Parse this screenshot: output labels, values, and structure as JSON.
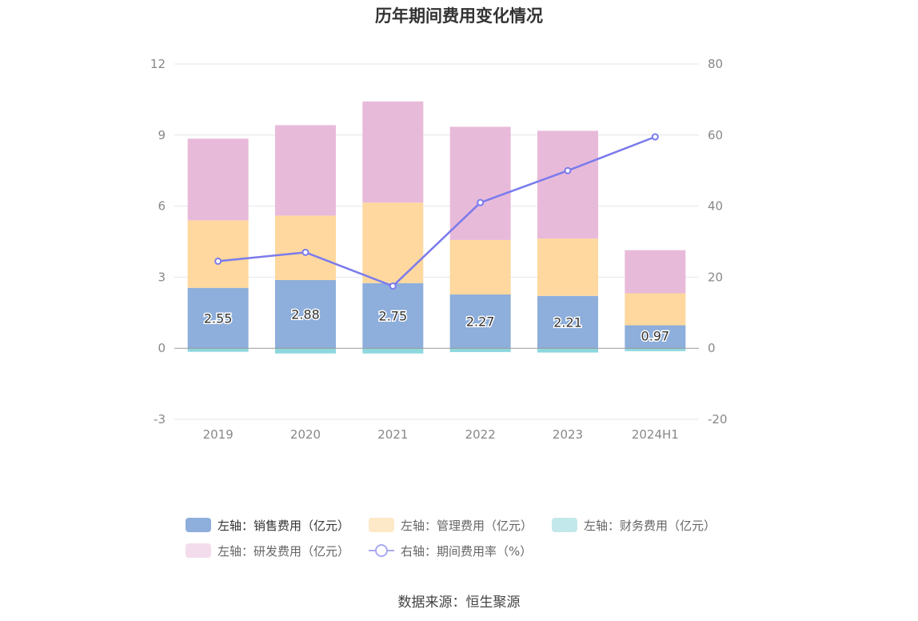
{
  "chart_data": {
    "type": "bar",
    "stacked": true,
    "title": "历年期间费用变化情况",
    "categories": [
      "2019",
      "2020",
      "2021",
      "2022",
      "2023",
      "2024H1"
    ],
    "left_axis": {
      "ticks": [
        "12",
        "9",
        "6",
        "3",
        "0",
        "-3"
      ],
      "ylim": [
        -3,
        12
      ]
    },
    "right_axis": {
      "ticks": [
        "80",
        "60",
        "40",
        "20",
        "0",
        "-20"
      ],
      "ylim": [
        -20,
        80
      ]
    },
    "series": [
      {
        "name": "左轴：销售费用（亿元）",
        "axis": "left",
        "type": "bar",
        "color": "#8eaedb",
        "values": [
          2.55,
          2.88,
          2.75,
          2.27,
          2.21,
          0.97
        ],
        "labels": [
          "2.55",
          "2.88",
          "2.75",
          "2.27",
          "2.21",
          "0.97"
        ]
      },
      {
        "name": "左轴：管理费用（亿元）",
        "axis": "left",
        "type": "bar",
        "color": "#fed89e",
        "values": [
          2.85,
          2.72,
          3.4,
          2.3,
          2.42,
          1.35
        ]
      },
      {
        "name": "左轴：财务费用（亿元）",
        "axis": "left",
        "type": "bar",
        "color": "#8dd7de",
        "values": [
          -0.15,
          -0.22,
          -0.22,
          -0.16,
          -0.18,
          -0.12
        ]
      },
      {
        "name": "左轴：研发费用（亿元）",
        "axis": "left",
        "type": "bar",
        "color": "#e8bada",
        "values": [
          3.45,
          3.82,
          4.27,
          4.78,
          4.55,
          1.82
        ]
      },
      {
        "name": "右轴：期间费用率（%）",
        "axis": "right",
        "type": "line",
        "color": "#7b7bec",
        "values": [
          24.5,
          27.0,
          17.5,
          41.0,
          50.0,
          59.5
        ]
      }
    ],
    "legend_position": "bottom",
    "grid": true
  },
  "source": "数据来源：恒生聚源"
}
